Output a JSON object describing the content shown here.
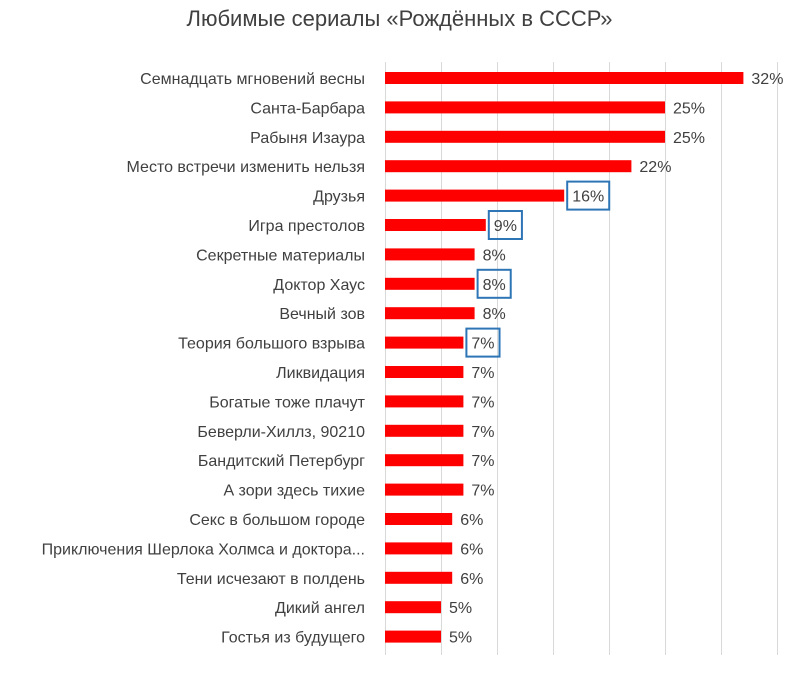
{
  "chart_data": {
    "type": "bar",
    "orientation": "horizontal",
    "title": "Любимые сериалы «Рождённых в СССР»",
    "xlabel": "",
    "ylabel": "",
    "xlim": [
      0,
      35
    ],
    "grid": true,
    "bar_color": "#ff0000",
    "highlight_color": "#2e75b6",
    "categories": [
      "Семнадцать мгновений весны",
      "Санта-Барбара",
      "Рабыня Изаура",
      "Место встречи изменить нельзя",
      "Друзья",
      "Игра престолов",
      "Секретные материалы",
      "Доктор Хаус",
      "Вечный зов",
      "Теория большого взрыва",
      "Ликвидация",
      "Богатые тоже плачут",
      "Беверли-Хиллз, 90210",
      "Бандитский Петербург",
      "А зори здесь тихие",
      "Секс в большом городе",
      "Приключения Шерлока Холмса и доктора...",
      "Тени исчезают в полдень",
      "Дикий ангел",
      "Гостья из будущего"
    ],
    "values": [
      32,
      25,
      25,
      22,
      16,
      9,
      8,
      8,
      8,
      7,
      7,
      7,
      7,
      7,
      7,
      6,
      6,
      6,
      5,
      5
    ],
    "value_labels": [
      "32%",
      "25%",
      "25%",
      "22%",
      "16%",
      "9%",
      "8%",
      "8%",
      "8%",
      "7%",
      "7%",
      "7%",
      "7%",
      "7%",
      "7%",
      "6%",
      "6%",
      "6%",
      "5%",
      "5%"
    ],
    "highlighted": [
      "Друзья",
      "Игра престолов",
      "Доктор Хаус",
      "Теория большого взрыва"
    ]
  }
}
